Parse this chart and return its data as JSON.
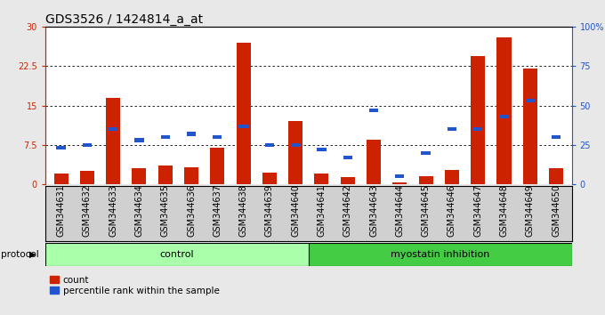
{
  "title": "GDS3526 / 1424814_a_at",
  "samples": [
    "GSM344631",
    "GSM344632",
    "GSM344633",
    "GSM344634",
    "GSM344635",
    "GSM344636",
    "GSM344637",
    "GSM344638",
    "GSM344639",
    "GSM344640",
    "GSM344641",
    "GSM344642",
    "GSM344643",
    "GSM344644",
    "GSM344645",
    "GSM344646",
    "GSM344647",
    "GSM344648",
    "GSM344649",
    "GSM344650"
  ],
  "count_values": [
    2.0,
    2.5,
    16.5,
    3.0,
    3.5,
    3.2,
    7.0,
    27.0,
    2.2,
    12.0,
    2.0,
    1.3,
    8.5,
    0.3,
    1.5,
    2.8,
    24.5,
    28.0,
    22.0,
    3.0
  ],
  "percentile_values": [
    23,
    25,
    35,
    28,
    30,
    32,
    30,
    37,
    25,
    25,
    22,
    17,
    47,
    5,
    20,
    35,
    35,
    43,
    53,
    30
  ],
  "control_label": "control",
  "myostatin_label": "myostatin inhibition",
  "protocol_label": "protocol",
  "legend_count": "count",
  "legend_percentile": "percentile rank within the sample",
  "ylim_left": [
    0,
    30
  ],
  "ylim_right": [
    0,
    100
  ],
  "yticks_left": [
    0,
    7.5,
    15,
    22.5,
    30
  ],
  "ytick_labels_left": [
    "0",
    "7.5",
    "15",
    "22.5",
    "30"
  ],
  "yticks_right": [
    0,
    25,
    50,
    75,
    100
  ],
  "ytick_labels_right": [
    "0",
    "25",
    "50",
    "75",
    "100%"
  ],
  "bar_color_count": "#cc2200",
  "bar_color_percentile": "#2255cc",
  "background_color": "#e8e8e8",
  "plot_bg": "#ffffff",
  "xtick_area_bg": "#d0d0d0",
  "control_bg": "#aaffaa",
  "myostatin_bg": "#44cc44",
  "title_fontsize": 10,
  "tick_fontsize": 7,
  "label_fontsize": 8,
  "n_control": 10,
  "n_myostatin": 10
}
